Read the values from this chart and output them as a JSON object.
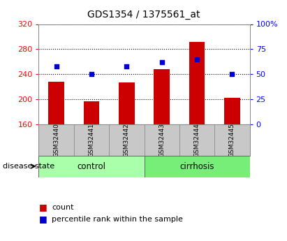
{
  "title": "GDS1354 / 1375561_at",
  "samples": [
    "GSM32440",
    "GSM32441",
    "GSM32442",
    "GSM32443",
    "GSM32444",
    "GSM32445"
  ],
  "counts": [
    228,
    197,
    227,
    248,
    292,
    202
  ],
  "percentiles": [
    58,
    50,
    58,
    62,
    65,
    50
  ],
  "ylim_left": [
    160,
    320
  ],
  "ylim_right": [
    0,
    100
  ],
  "yticks_left": [
    160,
    200,
    240,
    280,
    320
  ],
  "yticks_right": [
    0,
    25,
    50,
    75,
    100
  ],
  "ytick_labels_right": [
    "0",
    "25",
    "50",
    "75",
    "100%"
  ],
  "bar_color": "#cc0000",
  "dot_color": "#0000cc",
  "groups": [
    {
      "label": "control",
      "indices": [
        0,
        1,
        2
      ],
      "color": "#aaffaa"
    },
    {
      "label": "cirrhosis",
      "indices": [
        3,
        4,
        5
      ],
      "color": "#77ee77"
    }
  ],
  "disease_state_label": "disease state",
  "legend_count": "count",
  "legend_percentile": "percentile rank within the sample",
  "bg_color": "#ffffff",
  "sample_box_color": "#c8c8c8"
}
